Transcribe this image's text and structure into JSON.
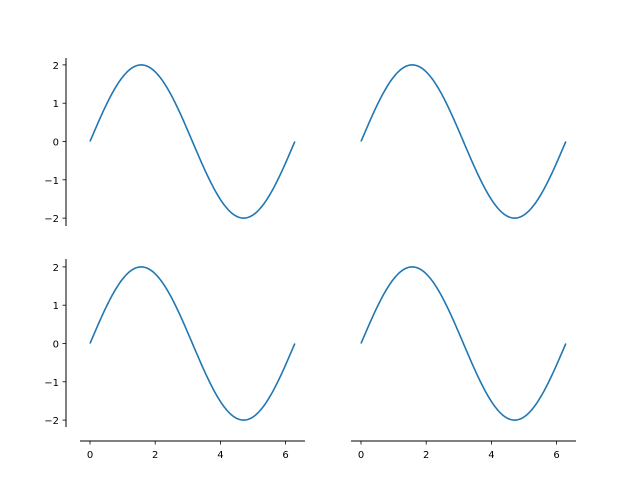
{
  "chart_data": [
    {
      "type": "line",
      "panel": "top-left",
      "function": "y = 2*sin(x)",
      "x_range": [
        0,
        6.2832
      ],
      "xlim": [
        -0.31,
        6.6
      ],
      "ylim": [
        -2.2,
        2.2
      ],
      "yticks": [
        "2",
        "1",
        "0",
        "−1",
        "−2"
      ],
      "xticks": [],
      "show_yaxis": true,
      "show_xaxis": false,
      "color": "#1f77b4"
    },
    {
      "type": "line",
      "panel": "top-right",
      "function": "y = 2*sin(x)",
      "x_range": [
        0,
        6.2832
      ],
      "xlim": [
        -0.31,
        6.6
      ],
      "ylim": [
        -2.2,
        2.2
      ],
      "yticks": [],
      "xticks": [],
      "show_yaxis": false,
      "show_xaxis": false,
      "color": "#1f77b4"
    },
    {
      "type": "line",
      "panel": "bottom-left",
      "function": "y = 2*sin(x)",
      "x_range": [
        0,
        6.2832
      ],
      "xlim": [
        -0.31,
        6.6
      ],
      "ylim": [
        -2.2,
        2.2
      ],
      "yticks": [
        "2",
        "1",
        "0",
        "−1",
        "−2"
      ],
      "xticks": [
        "0",
        "2",
        "4",
        "6"
      ],
      "show_yaxis": true,
      "show_xaxis": true,
      "color": "#1f77b4"
    },
    {
      "type": "line",
      "panel": "bottom-right",
      "function": "y = 2*sin(x)",
      "x_range": [
        0,
        6.2832
      ],
      "xlim": [
        -0.31,
        6.6
      ],
      "ylim": [
        -2.2,
        2.2
      ],
      "yticks": [],
      "xticks": [
        "0",
        "2",
        "4",
        "6"
      ],
      "show_yaxis": false,
      "show_xaxis": true,
      "color": "#1f77b4"
    }
  ]
}
